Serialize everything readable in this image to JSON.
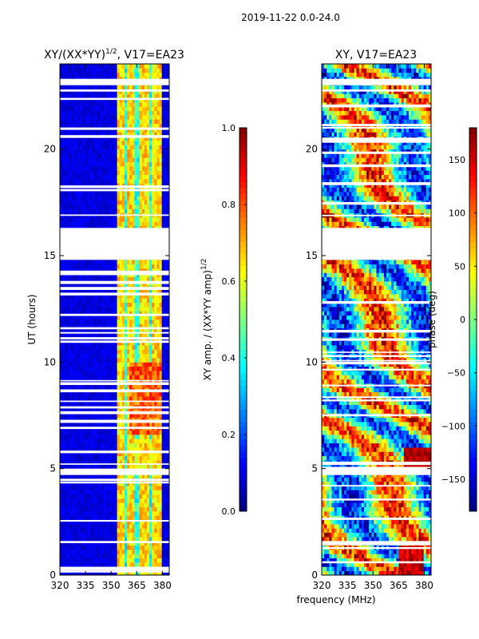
{
  "suptitle": "2019-11-22 0.0-24.0",
  "xlabel": "frequency (MHz)",
  "chart_data": [
    {
      "type": "heatmap",
      "title": "XY/(XX*YY)",
      "title_exponent": "1/2",
      "title_suffix": ", V17=EA23",
      "xlabel": "",
      "ylabel": "UT (hours)",
      "xlim": [
        320,
        384
      ],
      "ylim": [
        0,
        24
      ],
      "xticks": [
        320,
        335,
        350,
        365,
        380
      ],
      "yticks": [
        0,
        5,
        10,
        15,
        20
      ],
      "colormap": "jet",
      "colorbar": {
        "label": "XY amp. / (XX*YY amp)",
        "label_exponent": "1/2",
        "vmin": 0.0,
        "vmax": 1.0,
        "ticks": [
          "0.0",
          "0.2",
          "0.4",
          "0.6",
          "0.8",
          "1.0"
        ],
        "tick_values": [
          0.0,
          0.2,
          0.4,
          0.6,
          0.8,
          1.0
        ]
      }
    },
    {
      "type": "heatmap",
      "title": "XY, V17=EA23",
      "xlabel": "",
      "ylabel": "",
      "xlim": [
        320,
        384
      ],
      "ylim": [
        0,
        24
      ],
      "xticks": [
        320,
        335,
        350,
        365,
        380
      ],
      "yticks": [
        0,
        5,
        10,
        15,
        20
      ],
      "colormap": "jet",
      "colorbar": {
        "label": "phase (deg)",
        "vmin": -180,
        "vmax": 180,
        "ticks": [
          "−150",
          "−100",
          "−50",
          "0",
          "50",
          "100",
          "150"
        ],
        "tick_values": [
          -150,
          -100,
          -50,
          0,
          50,
          100,
          150
        ]
      }
    }
  ],
  "flagged_time_ranges_hours": [
    [
      16.3,
      14.8
    ],
    [
      23.3,
      23.0
    ],
    [
      22.8,
      22.7
    ],
    [
      5.0,
      4.7
    ],
    [
      1.6,
      1.5
    ]
  ],
  "amp_bright_channels_MHz": [
    354,
    356,
    361,
    363,
    368,
    371,
    375,
    378
  ],
  "amp_band_MHz": [
    353,
    380
  ]
}
